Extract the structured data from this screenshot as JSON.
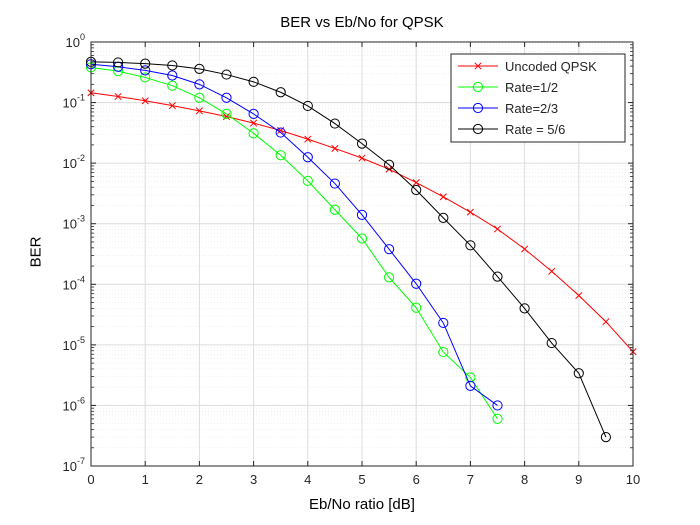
{
  "chart_data": {
    "type": "line",
    "title": "BER vs Eb/No for QPSK",
    "xlabel": "Eb/No ratio [dB]",
    "ylabel": "BER",
    "xlim": [
      0,
      10
    ],
    "ylim": [
      1e-07,
      1
    ],
    "yscale": "log",
    "grid": true,
    "minor_grid": true,
    "legend_position": "top-right",
    "x_ticks": [
      0,
      1,
      2,
      3,
      4,
      5,
      6,
      7,
      8,
      9,
      10
    ],
    "x_tick_labels": [
      "0",
      "1",
      "2",
      "3",
      "4",
      "5",
      "6",
      "7",
      "8",
      "9",
      "10"
    ],
    "y_ticks": [
      {
        "value": 1e-07,
        "base": "10",
        "exp": "-7"
      },
      {
        "value": 1e-06,
        "base": "10",
        "exp": "-6"
      },
      {
        "value": 1e-05,
        "base": "10",
        "exp": "-5"
      },
      {
        "value": 0.0001,
        "base": "10",
        "exp": "-4"
      },
      {
        "value": 0.001,
        "base": "10",
        "exp": "-3"
      },
      {
        "value": 0.01,
        "base": "10",
        "exp": "-2"
      },
      {
        "value": 0.1,
        "base": "10",
        "exp": "-1"
      },
      {
        "value": 1,
        "base": "10",
        "exp": "0"
      }
    ],
    "series": [
      {
        "name": "Uncoded QPSK",
        "color": "#ff0000",
        "marker": "x",
        "x": [
          0,
          0.5,
          1,
          1.5,
          2,
          2.5,
          3,
          3.5,
          4,
          4.5,
          5,
          5.5,
          6,
          6.5,
          7,
          7.5,
          8,
          8.5,
          9,
          9.5,
          10
        ],
        "y": [
          0.145,
          0.126,
          0.107,
          0.089,
          0.073,
          0.0588,
          0.0458,
          0.0346,
          0.0249,
          0.0175,
          0.0121,
          0.00795,
          0.00478,
          0.00278,
          0.00155,
          0.000818,
          0.000382,
          0.000164,
          6.52e-05,
          2.41e-05,
          7.7e-06
        ]
      },
      {
        "name": "Rate=1/2",
        "color": "#00ff00",
        "marker": "o",
        "x": [
          0,
          0.5,
          1,
          1.5,
          2,
          2.5,
          3,
          3.5,
          4,
          4.5,
          5,
          5.5,
          6,
          6.5,
          7,
          7.5
        ],
        "y": [
          0.38,
          0.33,
          0.26,
          0.19,
          0.12,
          0.065,
          0.031,
          0.0135,
          0.0051,
          0.0017,
          0.00057,
          0.00013,
          4.1e-05,
          7.6e-06,
          2.9e-06,
          6e-07
        ]
      },
      {
        "name": "Rate=2/3",
        "color": "#0000ff",
        "marker": "o",
        "x": [
          0,
          0.5,
          1,
          1.5,
          2,
          2.5,
          3,
          3.5,
          4,
          4.5,
          5,
          5.5,
          6,
          6.5,
          7,
          7.5
        ],
        "y": [
          0.43,
          0.39,
          0.34,
          0.28,
          0.2,
          0.12,
          0.065,
          0.032,
          0.0125,
          0.0046,
          0.0014,
          0.00038,
          0.000102,
          2.3e-05,
          2.1e-06,
          1e-06
        ]
      },
      {
        "name": "Rate = 5/6",
        "color": "#000000",
        "marker": "o",
        "x": [
          0,
          0.5,
          1,
          1.5,
          2,
          2.5,
          3,
          3.5,
          4,
          4.5,
          5,
          5.5,
          6,
          6.5,
          7,
          7.5,
          8,
          8.5,
          9,
          9.5
        ],
        "y": [
          0.47,
          0.46,
          0.44,
          0.41,
          0.36,
          0.29,
          0.22,
          0.148,
          0.088,
          0.045,
          0.021,
          0.0094,
          0.0036,
          0.00125,
          0.00044,
          0.000134,
          4e-05,
          1.07e-05,
          3.4e-06,
          3e-07
        ]
      }
    ]
  }
}
